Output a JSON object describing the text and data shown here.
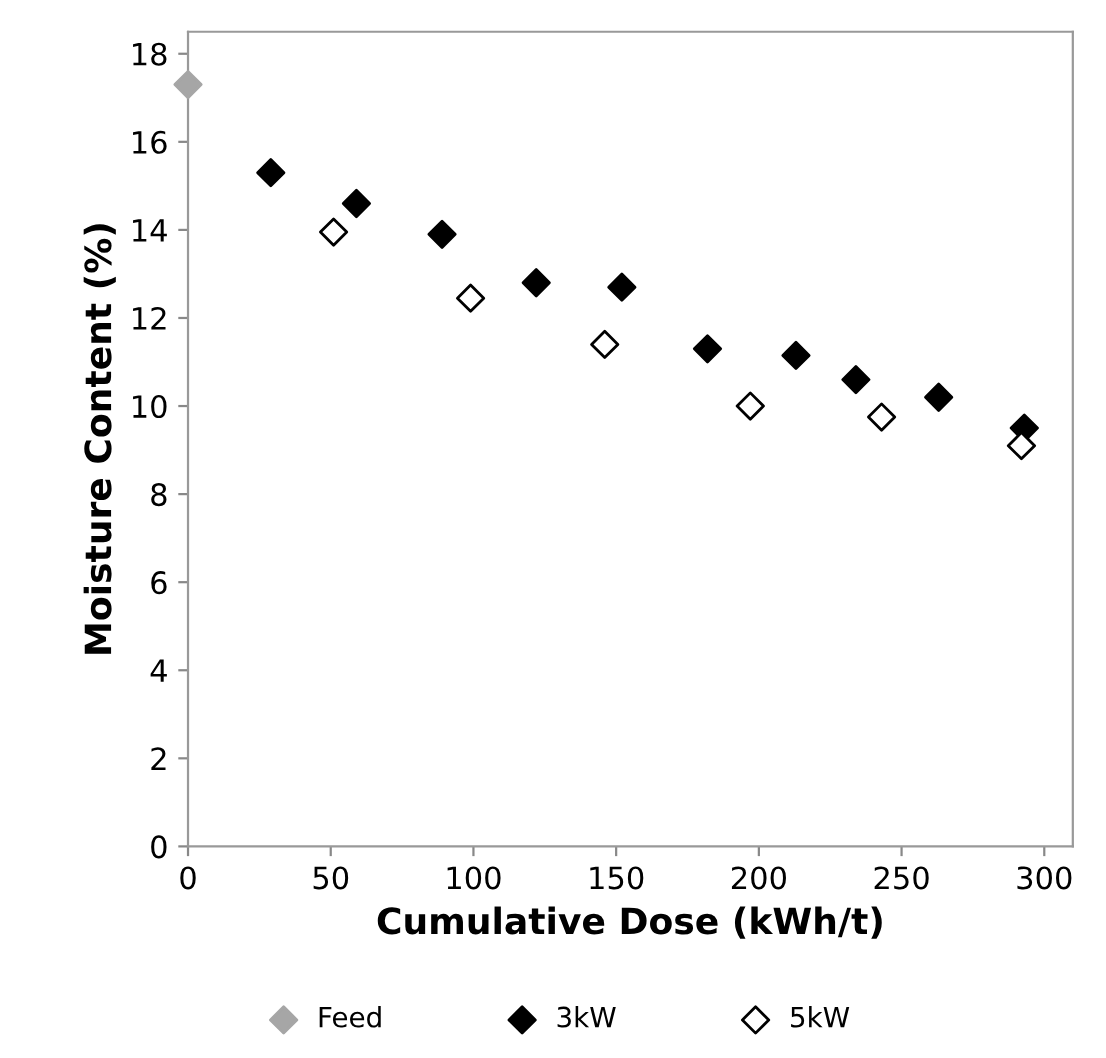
{
  "chart_data": {
    "type": "scatter",
    "xlabel": "Cumulative Dose (kWh/t)",
    "ylabel": "Moisture Content (%)",
    "xlim": [
      0,
      310
    ],
    "xticks": [
      0,
      50,
      100,
      150,
      200,
      250,
      300
    ],
    "ylim": [
      0,
      18.5
    ],
    "yticks": [
      0,
      2,
      4,
      6,
      8,
      10,
      12,
      14,
      16,
      18
    ],
    "grid": false,
    "legend": "bottom",
    "marker": "diamond",
    "series": [
      {
        "name": "Feed",
        "color": "#a6a6a6",
        "x": [
          0
        ],
        "values": [
          17.3
        ]
      },
      {
        "name": "3kW",
        "color": "#000000",
        "x": [
          29,
          59,
          89,
          122,
          152,
          182,
          213,
          234,
          263,
          293
        ],
        "values": [
          15.3,
          14.6,
          13.9,
          12.8,
          12.7,
          11.3,
          11.15,
          10.6,
          10.2,
          9.5
        ]
      },
      {
        "name": "5kW",
        "color": "#ffffff",
        "x": [
          51,
          99,
          146,
          197,
          243,
          292
        ],
        "values": [
          13.95,
          12.45,
          11.4,
          10.0,
          9.75,
          9.1
        ]
      }
    ]
  }
}
